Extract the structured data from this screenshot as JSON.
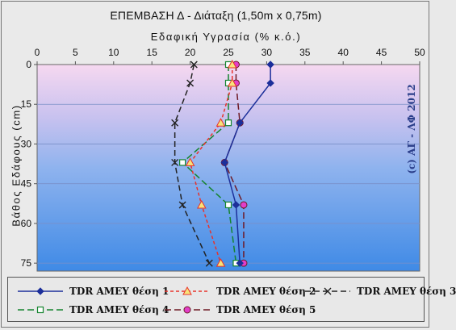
{
  "header": {
    "title": "ΕΠΕΜΒΑΣΗ Δ - Διάταξη (1,50m x 0,75m)",
    "xlabel": "Εδαφική Υγρασία (% κ.ό.)",
    "ylabel": "Βάθος Εδάφους (cm)",
    "watermark": "(c) ΑΓ - ΛΦ 2012"
  },
  "chart_data": {
    "type": "line",
    "title": "ΕΠΕΜΒΑΣΗ Δ - Διάταξη (1,50m x 0,75m)",
    "xlabel": "Εδαφική Υγρασία (% κ.ό.)",
    "ylabel": "Βάθος Εδάφους (cm)",
    "x_axis_position": "top",
    "y_inverted": true,
    "xlim": [
      0,
      50
    ],
    "ylim": [
      0,
      78
    ],
    "xticks": [
      0,
      5,
      10,
      15,
      20,
      25,
      30,
      35,
      40,
      45,
      50
    ],
    "yticks": [
      0,
      15,
      30,
      45,
      60,
      75
    ],
    "depths": [
      0,
      7,
      22,
      37,
      53,
      75
    ],
    "grid": "horizontal",
    "legend_position": "bottom",
    "series": [
      {
        "name": "TDR AMEY θέση 1",
        "color": "#1c2f9a",
        "dash": "",
        "marker": "diamond",
        "x": [
          30.5,
          30.5,
          26.5,
          24.5,
          26,
          26.5
        ],
        "y": [
          0,
          7,
          22,
          37,
          53,
          75
        ]
      },
      {
        "name": "TDR AMEY θέση 2",
        "color": "#e8322b",
        "dash": "4,3",
        "marker": "triangle",
        "x": [
          25.5,
          25.5,
          24,
          20,
          21.5,
          24
        ],
        "y": [
          0,
          7,
          22,
          37,
          53,
          75
        ]
      },
      {
        "name": "TDR AMEY θέση 3",
        "color": "#222222",
        "dash": "7,4",
        "marker": "x",
        "x": [
          20.5,
          20,
          18,
          18,
          19,
          22.5
        ],
        "y": [
          0,
          7,
          22,
          37,
          53,
          75
        ]
      },
      {
        "name": "TDR AMEY θέση 4",
        "color": "#15842f",
        "dash": "8,4",
        "marker": "square",
        "x": [
          25,
          25,
          25,
          19,
          25,
          26
        ],
        "y": [
          0,
          7,
          22,
          37,
          53,
          75
        ]
      },
      {
        "name": "TDR AMEY θέση 5",
        "color": "#6e1a26",
        "dash": "8,4",
        "marker": "circle",
        "x": [
          26,
          26,
          26.5,
          24.5,
          27,
          27
        ],
        "y": [
          0,
          7,
          22,
          37,
          53,
          75
        ]
      }
    ]
  }
}
